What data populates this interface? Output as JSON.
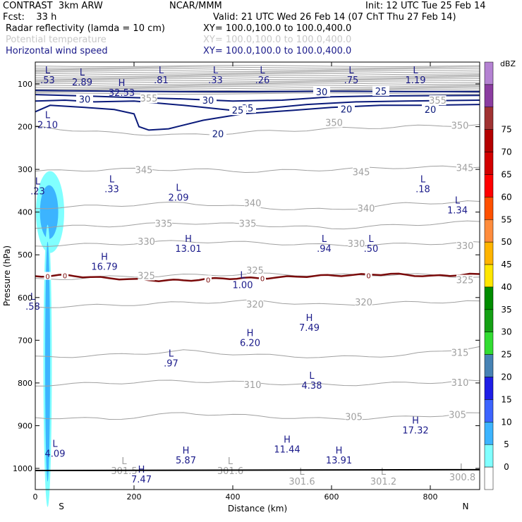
{
  "header": {
    "model": "CONTRAST  3km ARW",
    "org": "NCAR/MMM",
    "init": "Init: 12 UTC Tue 25 Feb 14",
    "fcst": "Fcst:    33 h",
    "valid": "Valid: 21 UTC Wed 26 Feb 14 (07 ChT Thu 27 Feb 14)",
    "field1_name": "Radar reflectivity (lamda = 10 cm)",
    "field1_xy": "XY= 100.0,100.0 to 100.0,400.0",
    "field2_name": "Potential temperature",
    "field2_xy": "XY= 100.0,100.0 to 100.0,400.0",
    "field3_name": "Horizontal wind speed",
    "field3_xy": "XY= 100.0,100.0 to 100.0,400.0"
  },
  "colors": {
    "theta": "#a0a0a0",
    "wind": "#0a1a7a",
    "zero": "#7a0a0a",
    "header_blue": "#1a1a8a"
  },
  "chart_data": {
    "type": "cross-section",
    "xlabel": "Distance (km)",
    "ylabel": "Pressure (hPa)",
    "xlim": [
      0,
      900
    ],
    "ylim": [
      1050,
      50
    ],
    "x_ticks": [
      "0",
      "200",
      "400",
      "600",
      "800"
    ],
    "y_ticks": [
      "100",
      "200",
      "300",
      "400",
      "500",
      "600",
      "700",
      "800",
      "900",
      "1000"
    ],
    "x_end_labels": [
      "S",
      "N"
    ],
    "colorbar": {
      "unit": "dBZ",
      "levels": [
        "0",
        "5",
        "10",
        "15",
        "20",
        "25",
        "30",
        "35",
        "40",
        "45",
        "50",
        "55",
        "60",
        "65",
        "70",
        "75"
      ],
      "colors": [
        "#ffffff",
        "#80ffff",
        "#3cb4ff",
        "#3c64ff",
        "#1e1ee6",
        "#4682b4",
        "#32dc32",
        "#14a014",
        "#008c00",
        "#ffe600",
        "#ffb400",
        "#ff8c3c",
        "#ff5000",
        "#ff0000",
        "#d20000",
        "#b40000",
        "#a03232",
        "#8b3ca0",
        "#b482d2"
      ]
    },
    "wind_contours": [
      {
        "level": "20",
        "points": [
          [
            0,
            165
          ],
          [
            30,
            150
          ],
          [
            100,
            155
          ],
          [
            160,
            160
          ],
          [
            200,
            170
          ],
          [
            210,
            200
          ],
          [
            230,
            208
          ],
          [
            270,
            205
          ],
          [
            340,
            185
          ],
          [
            420,
            170
          ],
          [
            520,
            162
          ],
          [
            600,
            155
          ],
          [
            700,
            150
          ],
          [
            780,
            150
          ],
          [
            900,
            148
          ]
        ]
      },
      {
        "level": "25",
        "points": [
          [
            0,
            140
          ],
          [
            60,
            138
          ],
          [
            120,
            142
          ],
          [
            200,
            140
          ],
          [
            300,
            150
          ],
          [
            400,
            162
          ],
          [
            460,
            158
          ],
          [
            550,
            148
          ],
          [
            650,
            142
          ],
          [
            750,
            140
          ],
          [
            900,
            138
          ]
        ]
      },
      {
        "level": "30",
        "points": [
          [
            0,
            125
          ],
          [
            100,
            128
          ],
          [
            200,
            132
          ],
          [
            300,
            135
          ],
          [
            400,
            140
          ],
          [
            500,
            138
          ],
          [
            600,
            130
          ],
          [
            700,
            128
          ],
          [
            900,
            127
          ]
        ]
      },
      {
        "level": "35",
        "points": [
          [
            0,
            115
          ],
          [
            150,
            117
          ],
          [
            300,
            118
          ],
          [
            450,
            118
          ],
          [
            600,
            117
          ],
          [
            750,
            118
          ],
          [
            900,
            118
          ]
        ]
      }
    ],
    "wind_labels": [
      {
        "text": "30",
        "x": 100,
        "p": 137
      },
      {
        "text": "30",
        "x": 350,
        "p": 140
      },
      {
        "text": "30",
        "x": 580,
        "p": 120
      },
      {
        "text": "25",
        "x": 430,
        "p": 158
      },
      {
        "text": "25",
        "x": 700,
        "p": 118
      },
      {
        "text": "25",
        "x": 410,
        "p": 163
      },
      {
        "text": "20",
        "x": 630,
        "p": 160
      },
      {
        "text": "20",
        "x": 800,
        "p": 161
      },
      {
        "text": "20",
        "x": 370,
        "p": 218
      }
    ],
    "theta_contours": [
      {
        "level": "305",
        "p": [
          880,
          885,
          870,
          878,
          885,
          880,
          870
        ]
      },
      {
        "level": "310",
        "p": [
          805,
          800,
          795,
          800,
          805,
          800,
          795
        ]
      },
      {
        "level": "315",
        "p": [
          740,
          735,
          725,
          735,
          740,
          735,
          715
        ]
      },
      {
        "level": "320",
        "p": [
          622,
          618,
          612,
          608,
          618,
          612,
          608
        ]
      },
      {
        "level": "325",
        "p": [
          558,
          552,
          548,
          545,
          548,
          546,
          552
        ]
      },
      {
        "level": "330",
        "p": [
          478,
          475,
          468,
          472,
          478,
          475,
          470
        ]
      },
      {
        "level": "335",
        "p": [
          435,
          432,
          425,
          430,
          438,
          430,
          422
        ]
      },
      {
        "level": "340",
        "p": [
          390,
          385,
          378,
          390,
          395,
          380,
          375
        ]
      },
      {
        "level": "345",
        "p": [
          305,
          300,
          300,
          305,
          300,
          295,
          295
        ]
      },
      {
        "level": "350",
        "p": [
          200,
          215,
          220,
          212,
          205,
          200,
          195
        ]
      }
    ],
    "theta_x": [
      0,
      150,
      300,
      450,
      600,
      750,
      900
    ],
    "theta_labels": [
      {
        "text": "345",
        "x": 220,
        "p": 302
      },
      {
        "text": "345",
        "x": 660,
        "p": 307
      },
      {
        "text": "345",
        "x": 870,
        "p": 297
      },
      {
        "text": "340",
        "x": 440,
        "p": 380
      },
      {
        "text": "340",
        "x": 670,
        "p": 392
      },
      {
        "text": "335",
        "x": 260,
        "p": 428
      },
      {
        "text": "335",
        "x": 430,
        "p": 428
      },
      {
        "text": "330",
        "x": 225,
        "p": 470
      },
      {
        "text": "330",
        "x": 650,
        "p": 475
      },
      {
        "text": "330",
        "x": 870,
        "p": 480
      },
      {
        "text": "325",
        "x": 225,
        "p": 550
      },
      {
        "text": "325",
        "x": 445,
        "p": 538
      },
      {
        "text": "325",
        "x": 870,
        "p": 560
      },
      {
        "text": "320",
        "x": 445,
        "p": 617
      },
      {
        "text": "320",
        "x": 665,
        "p": 612
      },
      {
        "text": "315",
        "x": 860,
        "p": 730
      },
      {
        "text": "310",
        "x": 440,
        "p": 805
      },
      {
        "text": "310",
        "x": 860,
        "p": 800
      },
      {
        "text": "305",
        "x": 645,
        "p": 880
      },
      {
        "text": "305",
        "x": 855,
        "p": 875
      },
      {
        "text": "350",
        "x": 860,
        "p": 198
      },
      {
        "text": "350",
        "x": 605,
        "p": 192
      },
      {
        "text": "355",
        "x": 230,
        "p": 135
      },
      {
        "text": "355",
        "x": 815,
        "p": 140
      }
    ],
    "zero_contour": [
      [
        0,
        550
      ],
      [
        60,
        548
      ],
      [
        150,
        555
      ],
      [
        250,
        560
      ],
      [
        300,
        560
      ],
      [
        380,
        555
      ],
      [
        450,
        555
      ],
      [
        550,
        550
      ],
      [
        620,
        548
      ],
      [
        720,
        545
      ],
      [
        800,
        550
      ],
      [
        900,
        545
      ]
    ],
    "zero_labels": [
      {
        "text": "0",
        "x": 25,
        "p": 550
      },
      {
        "text": "0",
        "x": 60,
        "p": 548
      },
      {
        "text": "0",
        "x": 350,
        "p": 558
      },
      {
        "text": "0",
        "x": 460,
        "p": 555
      },
      {
        "text": "0",
        "x": 675,
        "p": 548
      }
    ],
    "extrema": [
      {
        "mark": "L",
        "value": ".53",
        "x": 25,
        "p": 75,
        "color": "#1a1a8a"
      },
      {
        "mark": "L",
        "value": "2.89",
        "x": 95,
        "p": 80,
        "color": "#1a1a8a"
      },
      {
        "mark": "L",
        "value": ".81",
        "x": 255,
        "p": 75,
        "color": "#1a1a8a"
      },
      {
        "mark": "L",
        "value": ".33",
        "x": 365,
        "p": 75,
        "color": "#1a1a8a"
      },
      {
        "mark": "L",
        "value": ".26",
        "x": 460,
        "p": 75,
        "color": "#1a1a8a"
      },
      {
        "mark": "L",
        "value": ".75",
        "x": 640,
        "p": 75,
        "color": "#1a1a8a"
      },
      {
        "mark": "L",
        "value": "1.19",
        "x": 770,
        "p": 75,
        "color": "#1a1a8a"
      },
      {
        "mark": "H",
        "value": "32.53",
        "x": 175,
        "p": 105,
        "color": "#1a1a8a"
      },
      {
        "mark": "L",
        "value": "2.10",
        "x": 25,
        "p": 180,
        "color": "#1a1a8a"
      },
      {
        "mark": "L",
        "value": ".23",
        "x": 5,
        "p": 335,
        "color": "#1a1a8a"
      },
      {
        "mark": "L",
        "value": ".33",
        "x": 155,
        "p": 330,
        "color": "#1a1a8a"
      },
      {
        "mark": "L",
        "value": "2.09",
        "x": 290,
        "p": 350,
        "color": "#1a1a8a"
      },
      {
        "mark": "L",
        "value": ".18",
        "x": 785,
        "p": 330,
        "color": "#1a1a8a"
      },
      {
        "mark": "L",
        "value": "1.34",
        "x": 855,
        "p": 380,
        "color": "#1a1a8a"
      },
      {
        "mark": "H",
        "value": "13.01",
        "x": 310,
        "p": 470,
        "color": "#1a1a8a"
      },
      {
        "mark": "L",
        "value": ".94",
        "x": 585,
        "p": 470,
        "color": "#1a1a8a"
      },
      {
        "mark": "L",
        "value": ".50",
        "x": 680,
        "p": 470,
        "color": "#1a1a8a"
      },
      {
        "mark": "H",
        "value": "16.79",
        "x": 140,
        "p": 512,
        "color": "#1a1a8a"
      },
      {
        "mark": "L",
        "value": "1.00",
        "x": 420,
        "p": 555,
        "color": "#1a1a8a"
      },
      {
        "mark": "L",
        "value": ".58",
        "x": -5,
        "p": 605,
        "color": "#1a1a8a"
      },
      {
        "mark": "H",
        "value": "7.49",
        "x": 555,
        "p": 655,
        "color": "#1a1a8a"
      },
      {
        "mark": "H",
        "value": "6.20",
        "x": 435,
        "p": 690,
        "color": "#1a1a8a"
      },
      {
        "mark": "L",
        "value": ".97",
        "x": 275,
        "p": 738,
        "color": "#1a1a8a"
      },
      {
        "mark": "L",
        "value": "4.38",
        "x": 560,
        "p": 790,
        "color": "#1a1a8a"
      },
      {
        "mark": "H",
        "value": "17.32",
        "x": 770,
        "p": 895,
        "color": "#1a1a8a"
      },
      {
        "mark": "L",
        "value": "4.09",
        "x": 40,
        "p": 950,
        "color": "#1a1a8a"
      },
      {
        "mark": "H",
        "value": "11.44",
        "x": 510,
        "p": 940,
        "color": "#1a1a8a"
      },
      {
        "mark": "H",
        "value": "5.87",
        "x": 305,
        "p": 965,
        "color": "#1a1a8a"
      },
      {
        "mark": "H",
        "value": "13.91",
        "x": 615,
        "p": 965,
        "color": "#1a1a8a"
      },
      {
        "mark": "H",
        "value": "7.47",
        "x": 215,
        "p": 1010,
        "color": "#1a1a8a"
      },
      {
        "mark": "L",
        "value": "301.5",
        "x": 180,
        "p": 990,
        "color": "#a0a0a0"
      },
      {
        "mark": "L",
        "value": "301.6",
        "x": 395,
        "p": 990,
        "color": "#a0a0a0"
      },
      {
        "mark": "L",
        "value": "301.6",
        "x": 540,
        "p": 1015,
        "color": "#a0a0a0"
      },
      {
        "mark": "L",
        "value": "301.2",
        "x": 705,
        "p": 1015,
        "color": "#a0a0a0"
      },
      {
        "mark": "L",
        "value": "300.8",
        "x": 865,
        "p": 1005,
        "color": "#a0a0a0"
      }
    ]
  }
}
